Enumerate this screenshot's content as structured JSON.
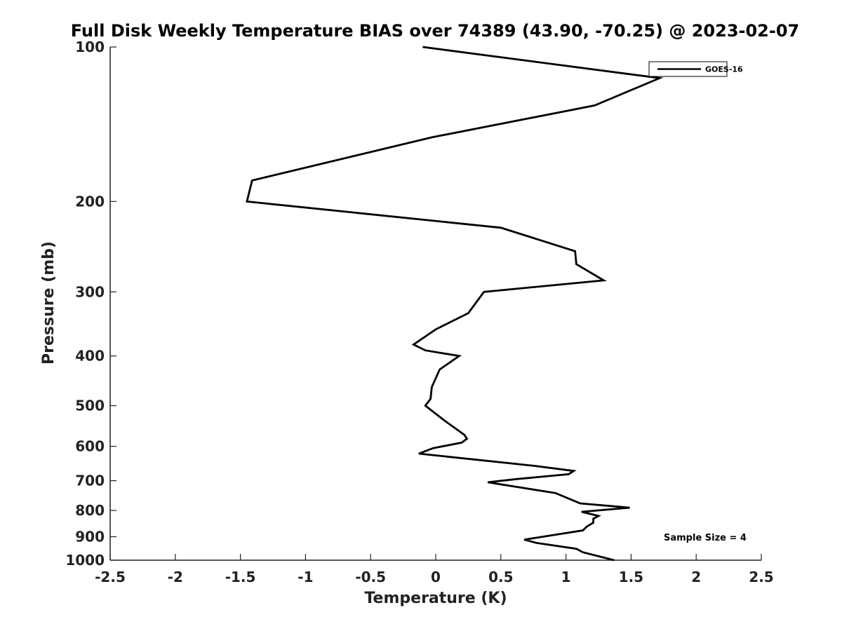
{
  "chart_data": {
    "type": "line",
    "title": "Full Disk Weekly Temperature BIAS over 74389 (43.90, -70.25) @ 2023-02-07",
    "xlabel": "Temperature (K)",
    "ylabel": "Pressure (mb)",
    "xlim": [
      -2.5,
      2.5
    ],
    "ylim": [
      1000,
      100
    ],
    "y_scale": "log",
    "x_ticks": [
      "-2.5",
      "-2",
      "-1.5",
      "-1",
      "-0.5",
      "0",
      "0.5",
      "1",
      "1.5",
      "2",
      "2.5"
    ],
    "y_ticks": [
      "100",
      "200",
      "300",
      "400",
      "500",
      "600",
      "700",
      "800",
      "900",
      "1000"
    ],
    "grid": false,
    "legend_position": "top-right",
    "annotation": "Sample Size = 4",
    "series": [
      {
        "name": "GOES-16",
        "color": "#000000",
        "x": [
          -0.1,
          1.72,
          1.22,
          -0.03,
          -1.41,
          -1.45,
          0.5,
          1.07,
          1.08,
          1.29,
          0.37,
          0.25,
          0.0,
          -0.17,
          -0.08,
          0.18,
          0.03,
          -0.03,
          -0.04,
          -0.08,
          0.07,
          0.22,
          0.24,
          0.2,
          -0.02,
          -0.13,
          0.76,
          1.06,
          1.02,
          0.62,
          0.4,
          0.92,
          1.11,
          1.49,
          1.12,
          1.25,
          1.21,
          1.21,
          1.16,
          1.13,
          0.68,
          0.77,
          1.08,
          1.13,
          1.37
        ],
        "y": [
          100,
          115,
          130,
          150,
          182,
          200,
          225,
          250,
          265,
          285,
          300,
          330,
          355,
          380,
          390,
          400,
          425,
          460,
          485,
          500,
          535,
          570,
          580,
          590,
          605,
          620,
          655,
          670,
          680,
          695,
          705,
          740,
          775,
          790,
          805,
          820,
          830,
          845,
          860,
          875,
          912,
          925,
          950,
          965,
          1000
        ]
      }
    ]
  }
}
